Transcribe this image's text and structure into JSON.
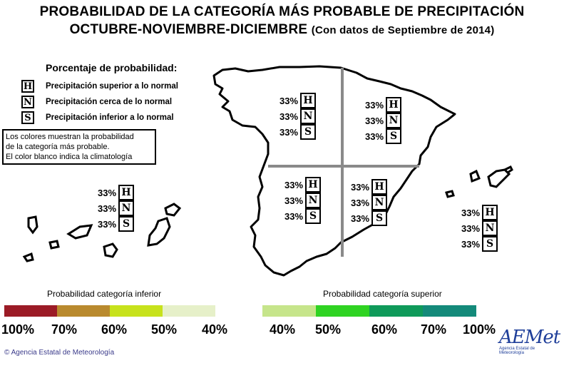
{
  "title": {
    "line1": "PROBABILIDAD DE LA CATEGORÍA MÁS PROBABLE DE PRECIPITACIÓN",
    "line2_main": "OCTUBRE-NOVIEMBRE-DICIEMBRE",
    "line2_sub": "(Con datos de Septiembre de 2014)"
  },
  "legend": {
    "heading": "Porcentaje de probabilidad:",
    "items": [
      {
        "letter": "H",
        "label": "Precipitación superior a lo normal"
      },
      {
        "letter": "N",
        "label": "Precipitación cerca de lo normal"
      },
      {
        "letter": "S",
        "label": "Precipitación inferior a lo normal"
      }
    ]
  },
  "note": {
    "line1": "Los colores muestran la probabilidad",
    "line2": "de la categoría más probable.",
    "line3": "El color blanco indica la climatología"
  },
  "regions": {
    "northwest": {
      "H": "33%",
      "N": "33%",
      "S": "33%"
    },
    "northeast": {
      "H": "33%",
      "N": "33%",
      "S": "33%"
    },
    "southwest": {
      "H": "33%",
      "N": "33%",
      "S": "33%"
    },
    "southeast": {
      "H": "33%",
      "N": "33%",
      "S": "33%"
    },
    "canarias": {
      "H": "33%",
      "N": "33%",
      "S": "33%"
    },
    "baleares": {
      "H": "33%",
      "N": "33%",
      "S": "33%"
    }
  },
  "scale_lower": {
    "title": "Probabilidad categoría inferior",
    "colors": [
      "#9b1b26",
      "#b98a2e",
      "#c7e21c",
      "#e6f0c9"
    ],
    "ticks": [
      "100%",
      "70%",
      "60%",
      "50%",
      "40%"
    ]
  },
  "scale_upper": {
    "title": "Probabilidad categoría superior",
    "colors": [
      "#c6e58b",
      "#2fd322",
      "#0f9a5a",
      "#148a7a"
    ],
    "ticks": [
      "40%",
      "50%",
      "60%",
      "70%",
      "100%"
    ]
  },
  "footer": {
    "copyright": "© Agencia Estatal de Meteorología",
    "logo_text": "AEMet",
    "logo_sub": "Agencia Estatal de Meteorología"
  }
}
